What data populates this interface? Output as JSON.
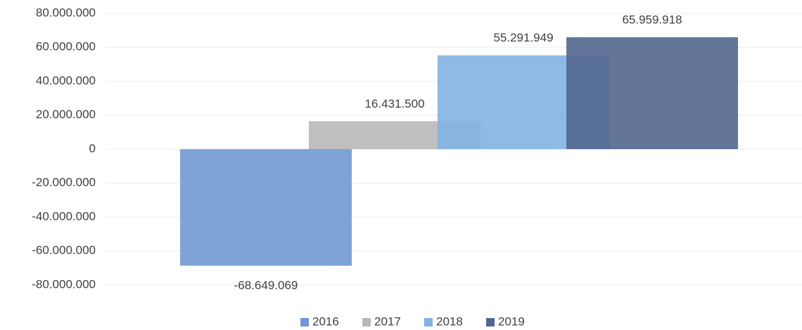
{
  "chart_data": {
    "type": "bar",
    "categories": [
      null
    ],
    "series": [
      {
        "name": "2016",
        "color": "#7199d3",
        "values": [
          -68649069
        ],
        "value_labels": [
          "-68.649.069"
        ]
      },
      {
        "name": "2017",
        "color": "#b8b8b8",
        "values": [
          16431500
        ],
        "value_labels": [
          "16.431.500"
        ]
      },
      {
        "name": "2018",
        "color": "#82b3e2",
        "values": [
          55291949
        ],
        "value_labels": [
          "55.291.949"
        ]
      },
      {
        "name": "2019",
        "color": "#52678f",
        "values": [
          65959918
        ],
        "value_labels": [
          "65.959.918"
        ]
      }
    ],
    "ylim": [
      -80000000,
      80000000
    ],
    "yticks": [
      {
        "value": -80000000,
        "label": "-80.000.000"
      },
      {
        "value": -60000000,
        "label": "-60.000.000"
      },
      {
        "value": -40000000,
        "label": "-40.000.000"
      },
      {
        "value": -20000000,
        "label": "-20.000.000"
      },
      0,
      {
        "value": 20000000,
        "label": "20.000.000"
      },
      {
        "value": 40000000,
        "label": "40.000.000"
      },
      {
        "value": 60000000,
        "label": "60.000.000"
      },
      {
        "value": 80000000,
        "label": "80.000.000"
      }
    ],
    "grid": true,
    "legend": "bottom"
  }
}
